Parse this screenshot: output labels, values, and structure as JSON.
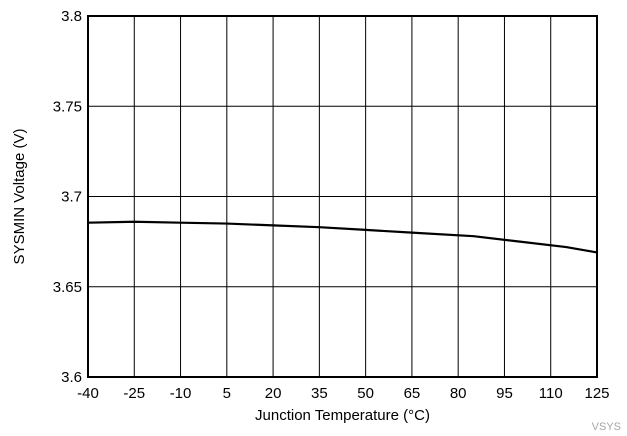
{
  "chart_data": {
    "type": "line",
    "title": "",
    "xlabel": "Junction Temperature (°C)",
    "ylabel": "SYSMIN Voltage (V)",
    "x_ticks": [
      -40,
      -25,
      -10,
      5,
      20,
      35,
      50,
      65,
      80,
      95,
      110,
      125
    ],
    "x_tick_labels": [
      "-40",
      "-25",
      "-10",
      "5",
      "20",
      "35",
      "50",
      "65",
      "80",
      "95",
      "110",
      "125"
    ],
    "y_ticks": [
      3.6,
      3.65,
      3.7,
      3.75,
      3.8
    ],
    "y_tick_labels": [
      "3.6",
      "3.65",
      "3.7",
      "3.75",
      "3.8"
    ],
    "xlim": [
      -40,
      125
    ],
    "ylim": [
      3.6,
      3.8
    ],
    "grid": true,
    "legend": "none",
    "series": [
      {
        "color": "#000000",
        "x": [
          -40,
          -25,
          -10,
          5,
          20,
          35,
          50,
          65,
          85,
          100,
          115,
          125
        ],
        "y": [
          3.6855,
          3.686,
          3.6855,
          3.685,
          3.684,
          3.683,
          3.6815,
          3.68,
          3.678,
          3.675,
          3.672,
          3.669
        ]
      }
    ]
  },
  "watermark": "VSYS"
}
